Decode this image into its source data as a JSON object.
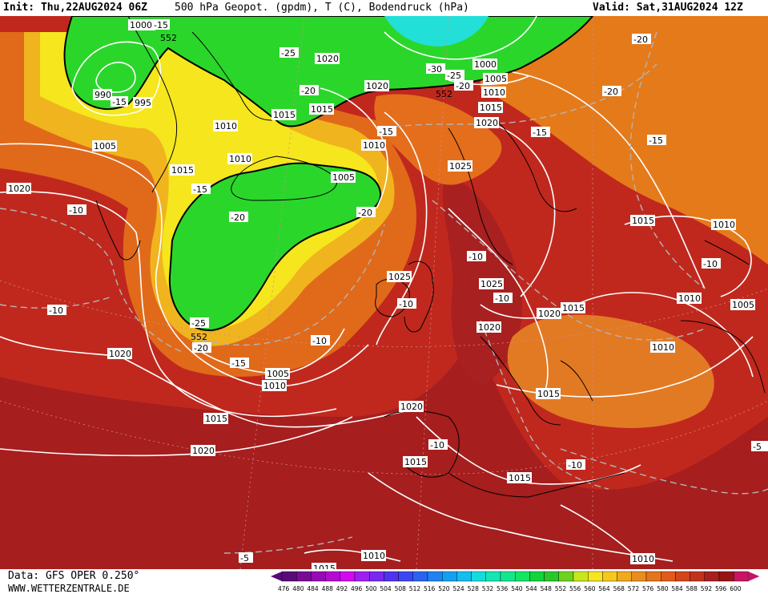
{
  "header": {
    "init": "Init: Thu,22AUG2024 06Z",
    "title": "500 hPa Geopot. (gpdm), T (C), Bodendruck (hPa)",
    "valid": "Valid: Sat,31AUG2024 12Z"
  },
  "footer": {
    "source": "Data: GFS OPER 0.250°",
    "website": "WWW.WETTERZENTRALE.DE"
  },
  "colors": {
    "ocean_red": "#c0281e",
    "deep_red": "#a61e1e",
    "orange": "#e8741a",
    "yellow": "#f5e61e",
    "green": "#2bd62b",
    "cyan": "#22e0d8",
    "isobar": "#ffffff",
    "isotherm": "#b4b4b4",
    "coast": "#000000"
  },
  "scale": {
    "values": [
      "476",
      "480",
      "484",
      "488",
      "492",
      "496",
      "500",
      "504",
      "508",
      "512",
      "516",
      "520",
      "524",
      "528",
      "532",
      "536",
      "540",
      "544",
      "548",
      "552",
      "556",
      "560",
      "564",
      "568",
      "572",
      "576",
      "580",
      "584",
      "588",
      "592",
      "596",
      "600"
    ],
    "colors": [
      "#5a0a78",
      "#780a96",
      "#960ab4",
      "#b40ad2",
      "#d20af0",
      "#a01ef0",
      "#7828f0",
      "#5032f0",
      "#3c46f0",
      "#2864f0",
      "#1e82f0",
      "#14a0f0",
      "#14bef0",
      "#14dcdc",
      "#14e6b4",
      "#14e68c",
      "#14e664",
      "#14d23c",
      "#28c828",
      "#6ed21e",
      "#c8e61e",
      "#f5e61e",
      "#f5c81e",
      "#f0aa1e",
      "#eb8c1e",
      "#e6741a",
      "#e15a1a",
      "#d2461a",
      "#c0321e",
      "#aa1e1e",
      "#961414",
      "#c81464"
    ]
  },
  "pressure_labels": [
    {
      "id": "p1000a",
      "text": "1000"
    },
    {
      "id": "p990",
      "text": "990"
    },
    {
      "id": "p995",
      "text": "995"
    },
    {
      "id": "p1005a",
      "text": "1005"
    },
    {
      "id": "p1015a",
      "text": "1015"
    },
    {
      "id": "p1020a",
      "text": "1020"
    },
    {
      "id": "p1010a",
      "text": "1010"
    },
    {
      "id": "p1020b",
      "text": "1020"
    },
    {
      "id": "p1015b",
      "text": "1015"
    },
    {
      "id": "p1015c",
      "text": "1015"
    },
    {
      "id": "p1020c",
      "text": "1020"
    },
    {
      "id": "p1000b",
      "text": "1000"
    },
    {
      "id": "p1005b",
      "text": "1005"
    },
    {
      "id": "p1010b",
      "text": "1010"
    },
    {
      "id": "p1015d",
      "text": "1015"
    },
    {
      "id": "p1020d",
      "text": "1020"
    },
    {
      "id": "p1010c",
      "text": "1010"
    },
    {
      "id": "p1005c",
      "text": "1005"
    },
    {
      "id": "p1010d",
      "text": "1010"
    },
    {
      "id": "p1025a",
      "text": "1025"
    },
    {
      "id": "p1025b",
      "text": "1025"
    },
    {
      "id": "p1025c",
      "text": "1025"
    },
    {
      "id": "p1020e",
      "text": "1020"
    },
    {
      "id": "p1020f",
      "text": "1020"
    },
    {
      "id": "p1015e",
      "text": "1015"
    },
    {
      "id": "p1015f",
      "text": "1015"
    },
    {
      "id": "p1010e",
      "text": "1010"
    },
    {
      "id": "p1010f",
      "text": "1010"
    },
    {
      "id": "p1005d",
      "text": "1005"
    },
    {
      "id": "p1010g",
      "text": "1010"
    },
    {
      "id": "p1015g",
      "text": "1015"
    },
    {
      "id": "p1020g",
      "text": "1020"
    },
    {
      "id": "p1015h",
      "text": "1015"
    },
    {
      "id": "p1015i",
      "text": "1015"
    },
    {
      "id": "p1020h",
      "text": "1020"
    },
    {
      "id": "p1015j",
      "text": "1015"
    },
    {
      "id": "p1005e",
      "text": "1005"
    },
    {
      "id": "p1010h",
      "text": "1010"
    },
    {
      "id": "p1010i",
      "text": "1010"
    },
    {
      "id": "p1010j",
      "text": "1010"
    },
    {
      "id": "p1015k",
      "text": "1015"
    }
  ],
  "temperature_labels": [
    {
      "id": "t-15a",
      "text": "-15"
    },
    {
      "id": "t-15b",
      "text": "-15"
    },
    {
      "id": "t-25a",
      "text": "-25"
    },
    {
      "id": "t-20a",
      "text": "-20"
    },
    {
      "id": "t-30",
      "text": "-30"
    },
    {
      "id": "t-25b",
      "text": "-25"
    },
    {
      "id": "t-20b",
      "text": "-20"
    },
    {
      "id": "t-20c",
      "text": "-20"
    },
    {
      "id": "t-20d",
      "text": "-20"
    },
    {
      "id": "t-15c",
      "text": "-15"
    },
    {
      "id": "t-15d",
      "text": "-15"
    },
    {
      "id": "t-15e",
      "text": "-15"
    },
    {
      "id": "t-15f",
      "text": "-15"
    },
    {
      "id": "t-10a",
      "text": "-10"
    },
    {
      "id": "t-20e",
      "text": "-20"
    },
    {
      "id": "t-20f",
      "text": "-20"
    },
    {
      "id": "t-10b",
      "text": "-10"
    },
    {
      "id": "t-10c",
      "text": "-10"
    },
    {
      "id": "t-10d",
      "text": "-10"
    },
    {
      "id": "t-10e",
      "text": "-10"
    },
    {
      "id": "t-25c",
      "text": "-25"
    },
    {
      "id": "t-20g",
      "text": "-20"
    },
    {
      "id": "t-15g",
      "text": "-15"
    },
    {
      "id": "t-10f",
      "text": "-10"
    },
    {
      "id": "t-10g",
      "text": "-10"
    },
    {
      "id": "t-10h",
      "text": "-10"
    },
    {
      "id": "t-5a",
      "text": "-5"
    },
    {
      "id": "t-5b",
      "text": "-5"
    },
    {
      "id": "t-10i",
      "text": "-10"
    }
  ],
  "geopotential_labels": [
    {
      "id": "g552a",
      "text": "552"
    },
    {
      "id": "g552b",
      "text": "552"
    },
    {
      "id": "g552c",
      "text": "552"
    }
  ]
}
